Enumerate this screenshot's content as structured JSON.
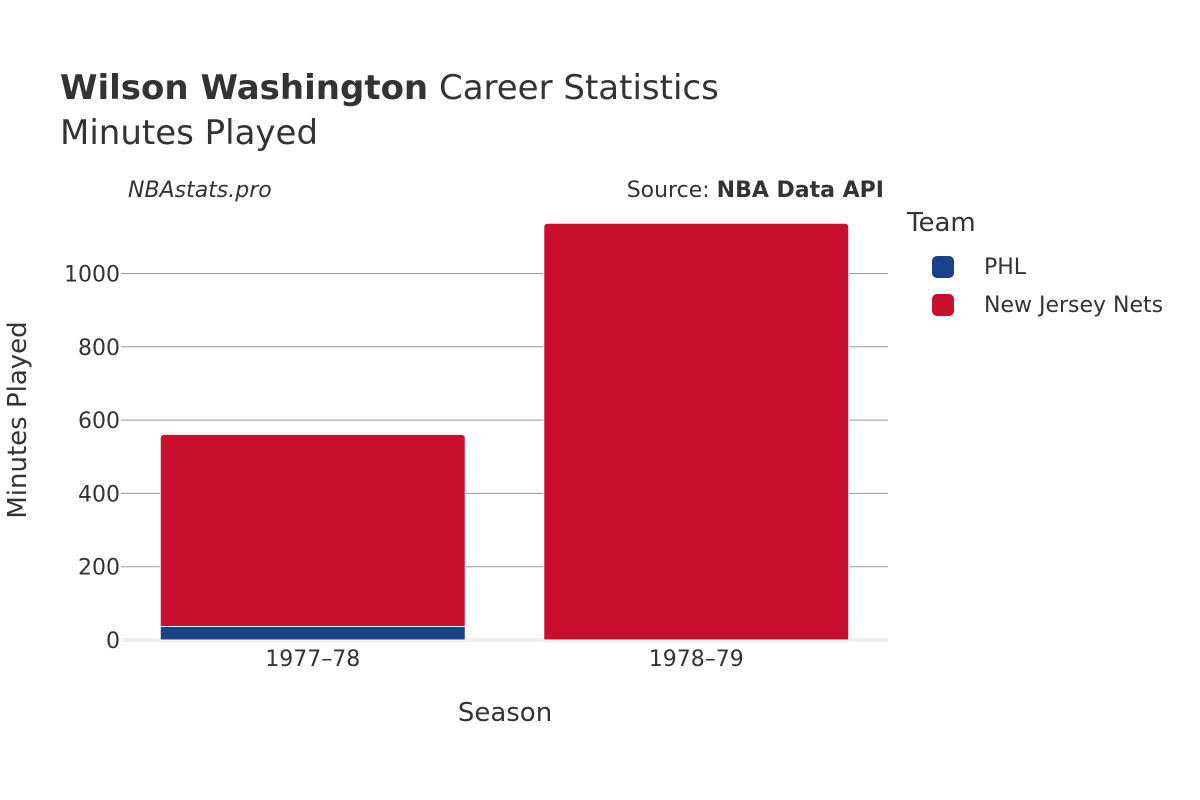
{
  "header": {
    "title_bold": "Wilson Washington",
    "title_rest": " Career Statistics",
    "subtitle": "Minutes Played"
  },
  "credits": {
    "site": "NBAstats.pro",
    "source_prefix": "Source: ",
    "source_name": "NBA Data API"
  },
  "legend": {
    "title": "Team",
    "items": [
      {
        "label": "PHL",
        "color": "#1a428a"
      },
      {
        "label": "New Jersey Nets",
        "color": "#c8102e"
      }
    ]
  },
  "chart_data": {
    "type": "bar",
    "stacked": true,
    "categories": [
      "1977–78",
      "1978–79"
    ],
    "series": [
      {
        "name": "PHL",
        "color": "#1a428a",
        "values": [
          37,
          0
        ]
      },
      {
        "name": "New Jersey Nets",
        "color": "#c8102e",
        "values": [
          524,
          1137
        ]
      }
    ],
    "xlabel": "Season",
    "ylabel": "Minutes Played",
    "ylim": [
      0,
      1150
    ],
    "yticks": [
      0,
      200,
      400,
      600,
      800,
      1000
    ],
    "grid": true
  }
}
